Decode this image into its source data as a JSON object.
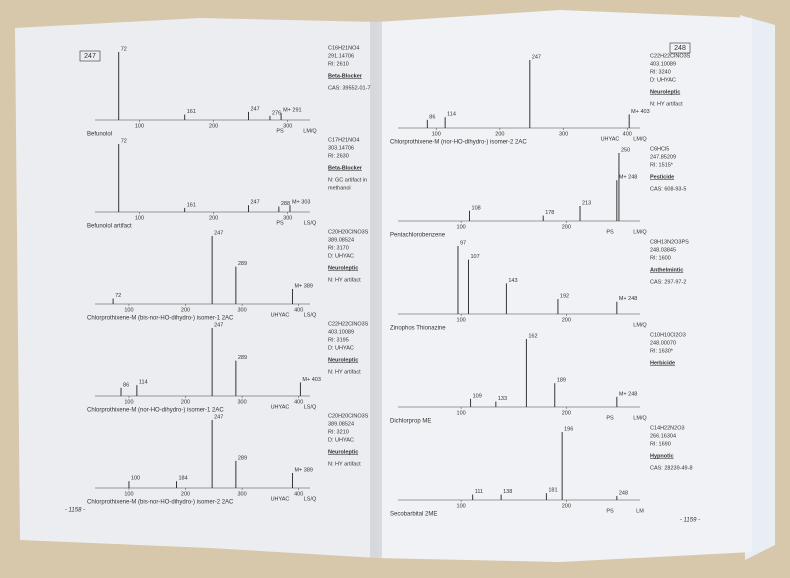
{
  "left_page": {
    "page_label": "247",
    "footer": "- 1158 -",
    "entries": [
      {
        "name": "Befunolol",
        "info": [
          "C16H21NO4",
          "291.14706",
          "RI: 2610"
        ],
        "class": "Beta-Blocker",
        "notes": [
          "CAS: 39552-01-7"
        ],
        "xlim": [
          40,
          330
        ],
        "axis_ticks": [
          100,
          200,
          300
        ],
        "axis_labels": [
          "PS",
          "LM/Q"
        ],
        "peaks": [
          {
            "mz": 72,
            "intensity": 100,
            "label": "72"
          },
          {
            "mz": 161,
            "intensity": 8,
            "label": "161"
          },
          {
            "mz": 247,
            "intensity": 12,
            "label": "247"
          },
          {
            "mz": 276,
            "intensity": 6,
            "label": "276"
          },
          {
            "mz": 291,
            "intensity": 10,
            "label": "M+ 291"
          }
        ]
      },
      {
        "name": "Befunolol artifact",
        "info": [
          "C17H21NO4",
          "303.14706",
          "RI: 2630"
        ],
        "class": "Beta-Blocker",
        "notes": [
          "N: GC artifact in",
          "methanol"
        ],
        "xlim": [
          40,
          330
        ],
        "axis_ticks": [
          100,
          200,
          300
        ],
        "axis_labels": [
          "PS",
          "LS/Q"
        ],
        "peaks": [
          {
            "mz": 72,
            "intensity": 100,
            "label": "72"
          },
          {
            "mz": 161,
            "intensity": 6,
            "label": "161"
          },
          {
            "mz": 247,
            "intensity": 10,
            "label": "247"
          },
          {
            "mz": 288,
            "intensity": 8,
            "label": "288"
          },
          {
            "mz": 303,
            "intensity": 10,
            "label": "M+ 303"
          }
        ]
      },
      {
        "name": "Chlorprothixene-M (bis-nor-HO-dihydro-) isomer-1 2AC",
        "info": [
          "C20H20ClNO3S",
          "389.08524",
          "RI: 3170",
          "D: UHYAC"
        ],
        "class": "Neuroleptic",
        "notes": [
          "N: HY artifact"
        ],
        "xlim": [
          40,
          420
        ],
        "axis_ticks": [
          100,
          200,
          300,
          400
        ],
        "axis_labels": [
          "UHYAC",
          "LS/Q"
        ],
        "peaks": [
          {
            "mz": 72,
            "intensity": 8,
            "label": "72"
          },
          {
            "mz": 247,
            "intensity": 100,
            "label": "247"
          },
          {
            "mz": 289,
            "intensity": 55,
            "label": "289"
          },
          {
            "mz": 389,
            "intensity": 22,
            "label": "M+ 389"
          }
        ]
      },
      {
        "name": "Chlorprothixene-M (nor-HO-dihydro-) isomer-1 2AC",
        "info": [
          "C22H22ClNO3S",
          "403.10089",
          "RI: 3195",
          "D: UHYAC"
        ],
        "class": "Neuroleptic",
        "notes": [
          "N: HY artifact"
        ],
        "xlim": [
          40,
          420
        ],
        "axis_ticks": [
          100,
          200,
          300,
          400
        ],
        "axis_labels": [
          "UHYAC",
          "LS/Q"
        ],
        "peaks": [
          {
            "mz": 86,
            "intensity": 12,
            "label": "86"
          },
          {
            "mz": 114,
            "intensity": 16,
            "label": "114"
          },
          {
            "mz": 247,
            "intensity": 100,
            "label": "247"
          },
          {
            "mz": 289,
            "intensity": 52,
            "label": "289"
          },
          {
            "mz": 403,
            "intensity": 20,
            "label": "M+ 403"
          }
        ]
      },
      {
        "name": "Chlorprothixene-M (bis-nor-HO-dihydro-) isomer-2 2AC",
        "info": [
          "C20H20ClNO3S",
          "389.08524",
          "RI: 3210",
          "D: UHYAC"
        ],
        "class": "Neuroleptic",
        "notes": [
          "N: HY artifact"
        ],
        "xlim": [
          40,
          420
        ],
        "axis_ticks": [
          100,
          200,
          300,
          400
        ],
        "axis_labels": [
          "UHYAC",
          "LS/Q"
        ],
        "peaks": [
          {
            "mz": 100,
            "intensity": 10,
            "label": "100"
          },
          {
            "mz": 184,
            "intensity": 10,
            "label": "184"
          },
          {
            "mz": 247,
            "intensity": 100,
            "label": "247"
          },
          {
            "mz": 289,
            "intensity": 40,
            "label": "289"
          },
          {
            "mz": 389,
            "intensity": 22,
            "label": "M+ 389"
          }
        ]
      }
    ]
  },
  "right_page": {
    "page_label": "248",
    "footer": "- 1159 -",
    "entries": [
      {
        "name": "Chlorprothixene-M (nor-HO-dihydro-) isomer-2 2AC",
        "info": [
          "C22H22ClNO3S",
          "403.10089",
          "RI: 3240",
          "D: UHYAC"
        ],
        "class": "Neuroleptic",
        "notes": [
          "N: HY artifact"
        ],
        "xlim": [
          40,
          420
        ],
        "axis_ticks": [
          100,
          200,
          300,
          400
        ],
        "axis_labels": [
          "UHYAC",
          "LM/Q"
        ],
        "peaks": [
          {
            "mz": 86,
            "intensity": 12,
            "label": "86"
          },
          {
            "mz": 114,
            "intensity": 16,
            "label": "114"
          },
          {
            "mz": 247,
            "intensity": 100,
            "label": "247"
          },
          {
            "mz": 403,
            "intensity": 20,
            "label": "M+ 403"
          }
        ]
      },
      {
        "name": "Pentachlorobenzene",
        "info": [
          "C6HCl5",
          "247.85209",
          "RI: 1515*"
        ],
        "class": "Pesticide",
        "notes": [
          "CAS: 608-93-5"
        ],
        "xlim": [
          40,
          270
        ],
        "axis_ticks": [
          100,
          200
        ],
        "axis_labels": [
          "PS",
          "LM/Q"
        ],
        "peaks": [
          {
            "mz": 108,
            "intensity": 15,
            "label": "108"
          },
          {
            "mz": 178,
            "intensity": 8,
            "label": "178"
          },
          {
            "mz": 213,
            "intensity": 22,
            "label": "213"
          },
          {
            "mz": 248,
            "intensity": 60,
            "label": "M+ 248"
          },
          {
            "mz": 250,
            "intensity": 100,
            "label": "250"
          }
        ]
      },
      {
        "name": "Zinophos\nThionazine",
        "info": [
          "C8H13N2O3PS",
          "248.03845",
          "RI: 1600"
        ],
        "class": "Anthelmintic",
        "notes": [
          "CAS: 297-97-2"
        ],
        "xlim": [
          40,
          270
        ],
        "axis_ticks": [
          100,
          200
        ],
        "axis_labels": [
          "LM/Q"
        ],
        "peaks": [
          {
            "mz": 97,
            "intensity": 100,
            "label": "97"
          },
          {
            "mz": 107,
            "intensity": 80,
            "label": "107"
          },
          {
            "mz": 143,
            "intensity": 45,
            "label": "143"
          },
          {
            "mz": 192,
            "intensity": 22,
            "label": "192"
          },
          {
            "mz": 248,
            "intensity": 18,
            "label": "M+ 248"
          }
        ]
      },
      {
        "name": "Dichlorprop ME",
        "info": [
          "C10H10Cl2O3",
          "248.00070",
          "RI: 1630*"
        ],
        "class": "Herbicide",
        "notes": [],
        "xlim": [
          40,
          270
        ],
        "axis_ticks": [
          100,
          200
        ],
        "axis_labels": [
          "PS",
          "LM/Q"
        ],
        "peaks": [
          {
            "mz": 109,
            "intensity": 12,
            "label": "109"
          },
          {
            "mz": 133,
            "intensity": 8,
            "label": "133"
          },
          {
            "mz": 162,
            "intensity": 100,
            "label": "162"
          },
          {
            "mz": 189,
            "intensity": 35,
            "label": "189"
          },
          {
            "mz": 248,
            "intensity": 15,
            "label": "M+ 248"
          }
        ]
      },
      {
        "name": "Secobarbital 2ME",
        "info": [
          "C14H22N2O3",
          "266.16304",
          "RI: 1690"
        ],
        "class": "Hypnotic",
        "notes": [
          "CAS: 28239-49-8"
        ],
        "xlim": [
          40,
          270
        ],
        "axis_ticks": [
          100,
          200
        ],
        "axis_labels": [
          "PS",
          "LM"
        ],
        "peaks": [
          {
            "mz": 111,
            "intensity": 8,
            "label": "111"
          },
          {
            "mz": 138,
            "intensity": 8,
            "label": "138"
          },
          {
            "mz": 181,
            "intensity": 10,
            "label": "181"
          },
          {
            "mz": 196,
            "intensity": 100,
            "label": "196"
          },
          {
            "mz": 248,
            "intensity": 6,
            "label": "248"
          }
        ]
      }
    ]
  }
}
